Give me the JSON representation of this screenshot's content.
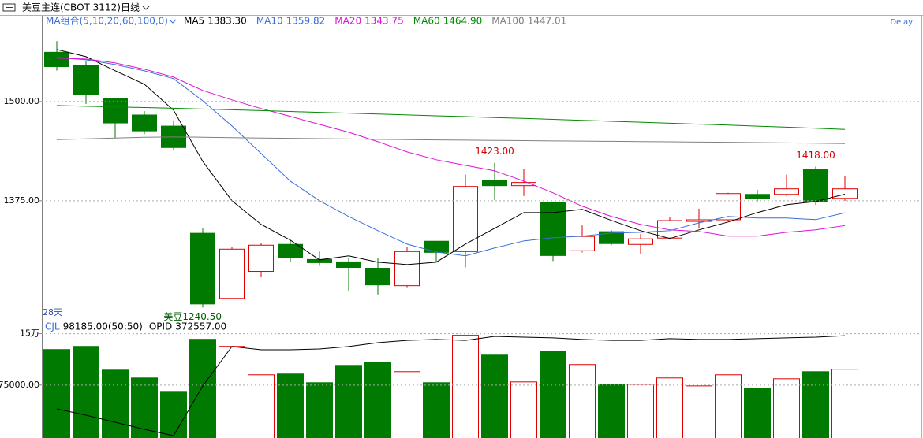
{
  "header": {
    "title": "美豆主连(CBOT 3112)",
    "period": "日线",
    "delay": "Delay"
  },
  "chart_data": [
    {
      "type": "candlestick",
      "legend_title": "MA组合(5,10,20,60,100,0)",
      "period_label": "28天",
      "up_color": "#e00000",
      "down_color": "#007a00",
      "open": [
        1562,
        1545,
        1504,
        1483,
        1469,
        1334,
        1252,
        1286,
        1320,
        1301,
        1298,
        1290,
        1268,
        1324,
        1311,
        1401,
        1394,
        1373,
        1312,
        1336,
        1320,
        1328,
        1349,
        1351,
        1383,
        1383,
        1414,
        1378
      ],
      "high": [
        1576,
        1551,
        1504,
        1488,
        1476,
        1340,
        1317,
        1322,
        1326,
        1311,
        1303,
        1303,
        1317,
        1324,
        1408,
        1423,
        1415,
        1374,
        1344,
        1338,
        1333,
        1354,
        1365,
        1385,
        1389,
        1408,
        1418,
        1406
      ],
      "low": [
        1539,
        1497,
        1454,
        1459,
        1439,
        1240.5,
        1252,
        1279,
        1298,
        1293,
        1261,
        1257,
        1266,
        1297,
        1291,
        1376,
        1381,
        1299,
        1310,
        1319,
        1308,
        1326,
        1340,
        1349,
        1374,
        1381,
        1370,
        1375
      ],
      "close": [
        1544,
        1509,
        1473,
        1463,
        1442,
        1245,
        1314,
        1319,
        1303,
        1297,
        1291,
        1269,
        1311,
        1310,
        1393,
        1394,
        1398,
        1306,
        1330,
        1321,
        1327,
        1350,
        1351,
        1384,
        1378,
        1390,
        1374,
        1390
      ],
      "series": [
        {
          "name": "MA5",
          "color": "#000000",
          "legend_value": "1383.30",
          "values": [
            1565.5,
            1556.5,
            1538.7,
            1521.8,
            1489,
            1424.6,
            1375,
            1345.2,
            1325.4,
            1300.6,
            1305.6,
            1297.6,
            1294.6,
            1297.6,
            1320.4,
            1340.3,
            1360.1,
            1360.1,
            1364.1,
            1350.2,
            1337.3,
            1327.4,
            1338.3,
            1348.2,
            1360.1,
            1370,
            1374,
            1383.3
          ]
        },
        {
          "name": "MA10",
          "color": "#3a6fd8",
          "legend_value": "1359.82",
          "values": [
            1555.5,
            1552.6,
            1546.6,
            1538.7,
            1528.8,
            1501,
            1469.2,
            1434.5,
            1399.8,
            1375,
            1355.2,
            1337.3,
            1320.4,
            1310.5,
            1305.6,
            1315.5,
            1324.4,
            1328.4,
            1330.4,
            1334.3,
            1335.3,
            1337.3,
            1347.2,
            1355.2,
            1353.2,
            1353.2,
            1351.2,
            1359.82
          ]
        },
        {
          "name": "MA20",
          "color": "#e010d8",
          "legend_value": "1343.75",
          "values": [
            1554.6,
            1553.6,
            1548.6,
            1540.7,
            1530.7,
            1513.9,
            1502,
            1491.1,
            1481.2,
            1471.2,
            1461.3,
            1449.4,
            1436.5,
            1426.6,
            1419.6,
            1412.7,
            1399.8,
            1384.9,
            1368.1,
            1355.2,
            1345.2,
            1338.3,
            1336.3,
            1330.4,
            1330.4,
            1335.3,
            1338.3,
            1343.75
          ]
        },
        {
          "name": "MA60",
          "color": "#008a00",
          "legend_value": "1464.90",
          "values": [
            1495,
            1494,
            1493.2,
            1492.4,
            1491.5,
            1490.5,
            1489.5,
            1488.5,
            1487.4,
            1486.3,
            1485.3,
            1484.2,
            1483.1,
            1482,
            1481,
            1479.8,
            1478.7,
            1477.5,
            1476.3,
            1475.1,
            1473.9,
            1472.7,
            1471.5,
            1470.3,
            1469,
            1467.7,
            1466.3,
            1464.9
          ]
        },
        {
          "name": "MA100",
          "color": "#808080",
          "legend_value": "1447.01",
          "values": [
            1452,
            1453,
            1454,
            1455,
            1455.3,
            1455,
            1454.5,
            1454,
            1453.6,
            1453.2,
            1452.8,
            1452.4,
            1452,
            1451.6,
            1451.3,
            1451,
            1450.7,
            1450.4,
            1450.1,
            1449.8,
            1449.5,
            1449.2,
            1448.9,
            1448.6,
            1448.3,
            1447.9,
            1447.5,
            1447.01
          ]
        }
      ],
      "annotations": [
        {
          "text": "1423.00",
          "at": "high",
          "value": 1423
        },
        {
          "text": "1418.00",
          "at": "high",
          "value": 1418
        },
        {
          "text": "美豆1240.50",
          "at": "low",
          "value": 1240.5
        }
      ],
      "ylim": [
        1224,
        1608
      ],
      "yticks": [
        {
          "value": 1375,
          "label": "1375.00"
        },
        {
          "value": 1500,
          "label": "1500.00"
        }
      ],
      "grid": true
    },
    {
      "type": "bar",
      "series": [
        {
          "name": "CJL",
          "legend_value": "98185.00(50:50)",
          "values": [
            126900,
            131500,
            96900,
            85400,
            65800,
            141900,
            131500,
            90000,
            91200,
            78500,
            103800,
            108500,
            94600,
            78500,
            147700,
            118800,
            79600,
            124600,
            105000,
            76200,
            76200,
            85400,
            73800,
            90000,
            70400,
            84200,
            94600,
            98185
          ]
        },
        {
          "name": "OPID",
          "legend_value": "372557.00",
          "axis": "y2",
          "color": "#000000",
          "values": [
            334400,
            331100,
            327400,
            323700,
            320400,
            346300,
            366900,
            365200,
            365200,
            365600,
            366900,
            368900,
            370100,
            370600,
            370100,
            372200,
            371800,
            371400,
            370600,
            370100,
            370100,
            371000,
            370600,
            370600,
            371000,
            371400,
            371800,
            372557
          ]
        }
      ],
      "up_color": "#e00000",
      "down_color": "#007a00",
      "ylim": [
        0,
        168000
      ],
      "yticks": [
        {
          "value": 75000,
          "label": "75000.00"
        },
        {
          "value": 150000,
          "label": "15万"
        }
      ],
      "y2lim": [
        320000,
        380000
      ],
      "grid": true
    }
  ]
}
